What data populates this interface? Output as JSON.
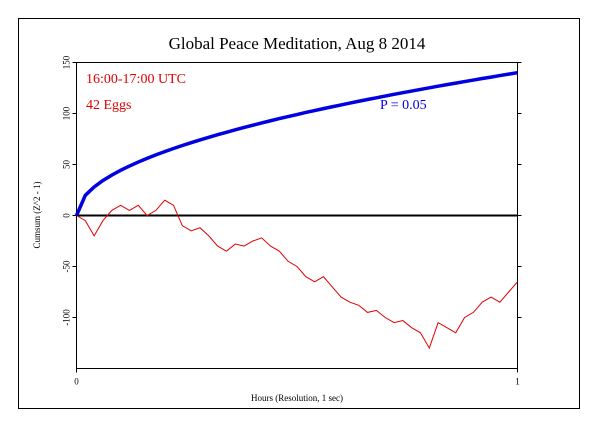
{
  "chart_data": {
    "type": "line",
    "title": "Global Peace Meditation, Aug 8 2014",
    "xlabel": "Hours (Resolution, 1 sec)",
    "ylabel": "Cumsum (Z^2 - 1)",
    "annotations": [
      "16:00-17:00 UTC",
      "42 Eggs"
    ],
    "x": [
      0,
      0.02,
      0.04,
      0.06,
      0.08,
      0.1,
      0.12,
      0.14,
      0.16,
      0.18,
      0.2,
      0.22,
      0.24,
      0.26,
      0.28,
      0.3,
      0.32,
      0.34,
      0.36,
      0.38,
      0.4,
      0.42,
      0.44,
      0.46,
      0.48,
      0.5,
      0.52,
      0.54,
      0.56,
      0.58,
      0.6,
      0.62,
      0.64,
      0.66,
      0.68,
      0.7,
      0.72,
      0.74,
      0.76,
      0.78,
      0.8,
      0.82,
      0.84,
      0.86,
      0.88,
      0.9,
      0.92,
      0.94,
      0.96,
      0.98,
      1
    ],
    "series": [
      {
        "color": "#e00000",
        "values": [
          0,
          -5,
          -20,
          -5,
          5,
          10,
          5,
          10,
          0,
          5,
          15,
          10,
          -10,
          -15,
          -12,
          -20,
          -30,
          -35,
          -28,
          -30,
          -25,
          -22,
          -30,
          -35,
          -45,
          -50,
          -60,
          -65,
          -60,
          -70,
          -80,
          -85,
          -88,
          -95,
          -93,
          -100,
          -105,
          -103,
          -110,
          -115,
          -130,
          -105,
          -110,
          -115,
          -100,
          -95,
          -85,
          -80,
          -85,
          -75,
          -65
        ]
      },
      {
        "name": "P = 0.05",
        "color": "#0000e0",
        "values": [
          0,
          19.8,
          28.0,
          34.3,
          39.6,
          44.3,
          48.5,
          52.4,
          56.0,
          59.4,
          62.6,
          65.7,
          68.6,
          71.4,
          74.1,
          76.7,
          79.2,
          81.6,
          84.0,
          86.3,
          88.5,
          90.7,
          92.9,
          95.0,
          97.0,
          99.0,
          101.0,
          102.9,
          104.8,
          106.6,
          108.4,
          110.2,
          112.0,
          113.7,
          115.4,
          117.1,
          118.8,
          120.4,
          122.0,
          123.6,
          125.2,
          126.8,
          128.3,
          129.8,
          131.3,
          132.8,
          134.3,
          135.7,
          137.2,
          138.6,
          140
        ]
      }
    ],
    "xlim": [
      0,
      1
    ],
    "xticks": [
      0,
      1
    ],
    "ylim": [
      -150,
      150
    ],
    "yticks": [
      -100,
      -50,
      0,
      50,
      100,
      150
    ]
  }
}
